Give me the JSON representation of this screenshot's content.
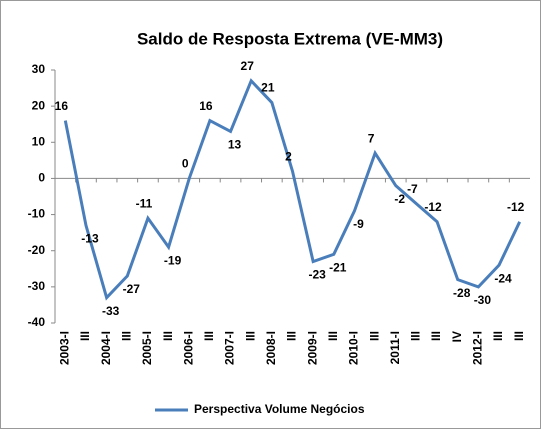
{
  "chart_data": {
    "type": "line",
    "title": "Saldo de Resposta Extrema (VE-MM3)",
    "categories": [
      "2003-I",
      "III",
      "2004-I",
      "III",
      "2005-I",
      "III",
      "2006-I",
      "III",
      "2007-I",
      "III",
      "2008-I",
      "III",
      "2009-I",
      "III",
      "2010-I",
      "III",
      "2011-I",
      "III",
      "III",
      "IV",
      "2012-I",
      "III",
      "III"
    ],
    "series": [
      {
        "name": "Perspectiva Volume Negócios",
        "color": "#4a7ebb",
        "values": [
          16,
          -13,
          -33,
          -27,
          -11,
          -19,
          0,
          16,
          13,
          27,
          21,
          2,
          -23,
          -21,
          -9,
          7,
          -2,
          -7,
          -12,
          -28,
          -30,
          -24,
          -12
        ]
      }
    ],
    "ylim": [
      -40,
      30
    ],
    "yticks": [
      -40,
      -30,
      -20,
      -10,
      0,
      10,
      20,
      30
    ],
    "grid": false,
    "legend": "bottom"
  }
}
